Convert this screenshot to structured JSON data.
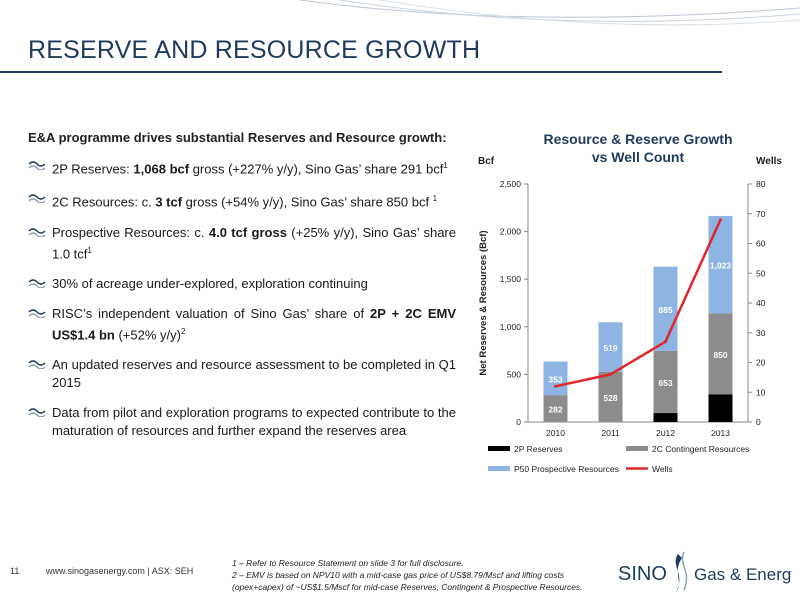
{
  "slide": {
    "title": "RESERVE AND RESOURCE GROWTH",
    "intro": "E&A programme drives substantial Reserves and Resource growth:",
    "bullets": [
      {
        "pre": "2P Reserves: ",
        "bold": "1,068 bcf",
        "post": " gross (+227% y/y), Sino Gas’ share 291 bcf",
        "sup": "1"
      },
      {
        "pre": "2C Resources: c. ",
        "bold": "3 tcf",
        "post": " gross (+54% y/y), Sino Gas’ share 850 bcf ",
        "sup": "1"
      },
      {
        "pre": "Prospective Resources: c. ",
        "bold": "4.0 tcf gross",
        "post": " (+25% y/y), Sino Gas’ share 1.0 tcf",
        "sup": "1"
      },
      {
        "pre": "30% of acreage under-explored, exploration continuing",
        "bold": "",
        "post": "",
        "sup": ""
      },
      {
        "pre": "RISC’s independent valuation of Sino Gas’ share of ",
        "bold": "2P + 2C EMV US$1.4 bn",
        "post": " (+52% y/y)",
        "sup": "2"
      },
      {
        "pre": "An updated reserves and resource assessment to be completed in Q1 2015",
        "bold": "",
        "post": "",
        "sup": ""
      },
      {
        "pre": "Data from pilot and exploration programs to expected contribute to the maturation of resources and further expand the reserves area",
        "bold": "",
        "post": "",
        "sup": ""
      }
    ]
  },
  "footer": {
    "page": "11",
    "url": "www.sinogasenergy.com | ASX: SEH",
    "note1": "1 – Refer to Resource Statement on slide 3 for full disclosure.",
    "note2": "2 – EMV is based on NPV10 with a mid-case gas price of US$8.79/Mscf and lifting costs (opex+capex) of ~US$1.5/Mscf for mid-case Reserves, Contingent & Prospective Resources.",
    "logo_word1": "SINO",
    "logo_word2": "Gas & Energy"
  },
  "colors": {
    "brand": "#1f3b5c",
    "reserves": "#000000",
    "contingent": "#8c8c8c",
    "prospective": "#8db4e2",
    "wells": "#e3262b"
  },
  "chart_data": {
    "type": "bar",
    "stacked": true,
    "title": "Resource & Reserve Growth vs Well Count",
    "title_lines": [
      "Resource & Reserve Growth",
      "vs Well Count"
    ],
    "left_unit": "Bcf",
    "right_unit": "Wells",
    "ylabel": "Net Reserves & Resources (Bcf)",
    "categories": [
      "2010",
      "2011",
      "2012",
      "2013"
    ],
    "ylim": [
      0,
      2500
    ],
    "yticks": [
      "0",
      "500",
      "1,000",
      "1,500",
      "2,000",
      "2,500"
    ],
    "y2lim": [
      0,
      80
    ],
    "y2ticks": [
      "0",
      "10",
      "20",
      "30",
      "40",
      "50",
      "60",
      "70",
      "80"
    ],
    "series": [
      {
        "name": "2P Reserves",
        "kind": "bar",
        "color": "#000000",
        "values": [
          0,
          0,
          94,
          291
        ],
        "labels": [
          "",
          "",
          "94",
          "291"
        ]
      },
      {
        "name": "2C Contingent Resources",
        "kind": "bar",
        "color": "#8c8c8c",
        "values": [
          282,
          528,
          653,
          850
        ],
        "labels": [
          "282",
          "528",
          "653",
          "850"
        ]
      },
      {
        "name": "P50 Prospective Resources",
        "kind": "bar",
        "color": "#8db4e2",
        "values": [
          353,
          519,
          885,
          1023
        ],
        "labels": [
          "353",
          "519",
          "885",
          "1,023"
        ]
      },
      {
        "name": "Wells",
        "kind": "line",
        "axis": "right",
        "color": "#e3262b",
        "values": [
          12,
          16,
          27,
          68
        ]
      }
    ],
    "legend": "bottom"
  }
}
